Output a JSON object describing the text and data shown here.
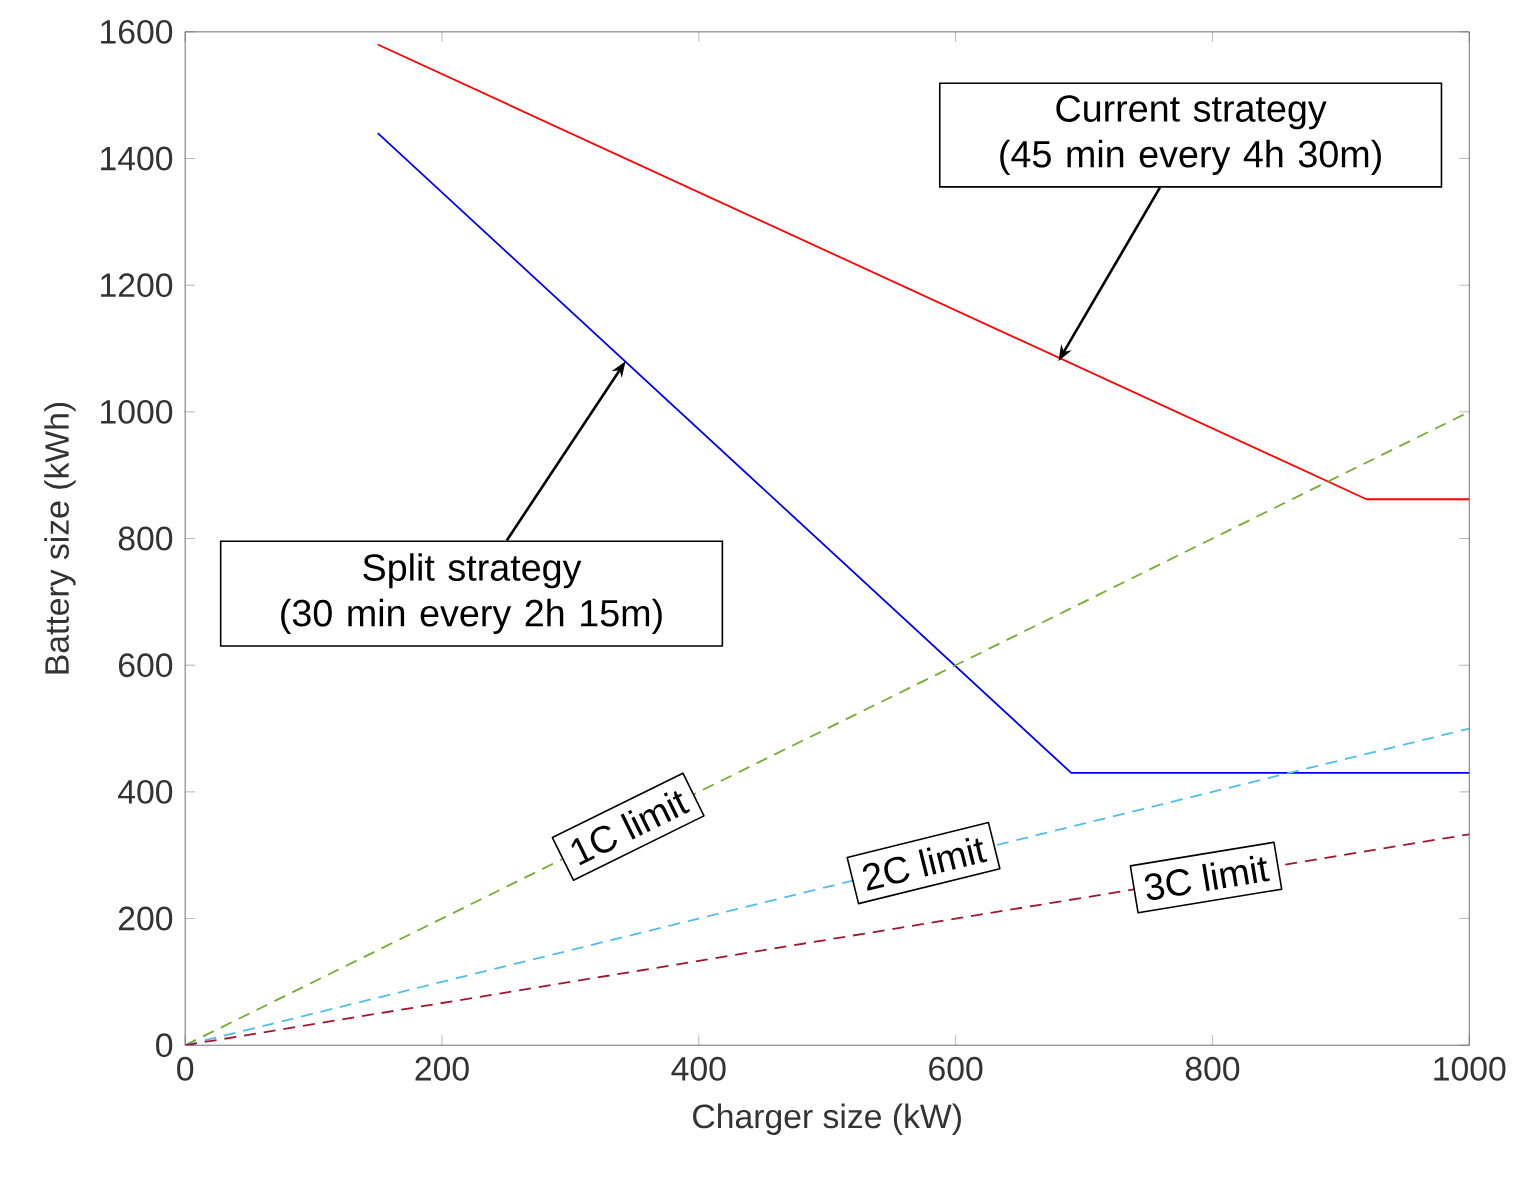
{
  "chart_data": {
    "type": "line",
    "xlabel": "Charger size (kW)",
    "ylabel": "Battery size (kWh)",
    "xlim": [
      0,
      1000
    ],
    "ylim": [
      0,
      1600
    ],
    "xticks": [
      0,
      200,
      400,
      600,
      800,
      1000
    ],
    "yticks": [
      0,
      200,
      400,
      600,
      800,
      1000,
      1200,
      1400,
      1600
    ],
    "grid": false,
    "marker": "none",
    "series": [
      {
        "color": "#ff0000",
        "line_style": "solid",
        "x": [
          150,
          920,
          1000
        ],
        "values": [
          1580,
          862,
          862
        ]
      },
      {
        "color": "#0000ff",
        "line_style": "solid",
        "x": [
          150,
          690,
          1000
        ],
        "values": [
          1440,
          430,
          430
        ]
      },
      {
        "name": "1C limit",
        "color": "#77ac30",
        "line_style": "dashed",
        "x": [
          0,
          1000
        ],
        "values": [
          0,
          1000
        ]
      },
      {
        "name": "2C limit",
        "color": "#4dbeee",
        "line_style": "dashed",
        "x": [
          0,
          1000
        ],
        "values": [
          0,
          500
        ]
      },
      {
        "name": "3C limit",
        "color": "#a2142f",
        "line_style": "dashed",
        "x": [
          0,
          1000
        ],
        "values": [
          0,
          333
        ]
      }
    ],
    "annotations": [
      {
        "text": "Current strategy\n(45 min every 4h 30m)",
        "x": 680,
        "y": 1080
      },
      {
        "text": "Split strategy\n(30 min every 2h 15m)",
        "x": 343,
        "y": 1080
      }
    ]
  }
}
